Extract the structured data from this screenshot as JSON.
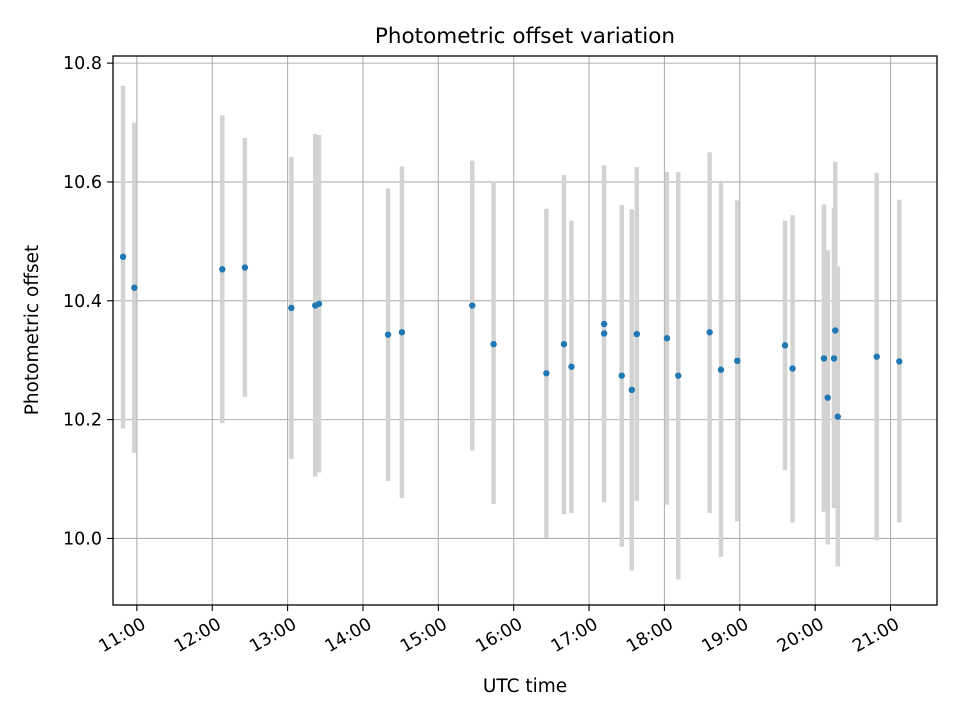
{
  "chart_data": {
    "type": "scatter",
    "title": "Photometric offset variation",
    "xlabel": "UTC time",
    "ylabel": "Photometric offset",
    "x_unit": "UTC time (HH:MM)",
    "xlim": [
      "10:41",
      "21:37"
    ],
    "ylim": [
      9.888,
      10.812
    ],
    "x_ticks": [
      "11:00",
      "12:00",
      "13:00",
      "14:00",
      "15:00",
      "16:00",
      "17:00",
      "18:00",
      "19:00",
      "20:00",
      "21:00"
    ],
    "y_ticks": [
      10.0,
      10.2,
      10.4,
      10.6,
      10.8
    ],
    "y_tick_labels": [
      "10.0",
      "10.2",
      "10.4",
      "10.6",
      "10.8"
    ],
    "grid": true,
    "colors": {
      "point": "#1f77b4",
      "errorbar": "#d3d3d3",
      "grid": "#b0b0b0"
    },
    "series": [
      {
        "marker": "point",
        "errorbar": "vertical",
        "points": [
          {
            "x": "10:49",
            "y": 10.474,
            "ylow": 10.185,
            "yhigh": 10.762
          },
          {
            "x": "10:58",
            "y": 10.422,
            "ylow": 10.144,
            "yhigh": 10.7
          },
          {
            "x": "12:08",
            "y": 10.453,
            "ylow": 10.194,
            "yhigh": 10.712
          },
          {
            "x": "12:26",
            "y": 10.456,
            "ylow": 10.238,
            "yhigh": 10.674
          },
          {
            "x": "13:03",
            "y": 10.388,
            "ylow": 10.134,
            "yhigh": 10.642
          },
          {
            "x": "13:22",
            "y": 10.392,
            "ylow": 10.104,
            "yhigh": 10.681
          },
          {
            "x": "13:25",
            "y": 10.395,
            "ylow": 10.111,
            "yhigh": 10.679
          },
          {
            "x": "14:20",
            "y": 10.343,
            "ylow": 10.097,
            "yhigh": 10.589
          },
          {
            "x": "14:31",
            "y": 10.347,
            "ylow": 10.068,
            "yhigh": 10.626
          },
          {
            "x": "15:27",
            "y": 10.392,
            "ylow": 10.148,
            "yhigh": 10.636
          },
          {
            "x": "15:44",
            "y": 10.327,
            "ylow": 10.058,
            "yhigh": 10.601
          },
          {
            "x": "16:26",
            "y": 10.278,
            "ylow": 10.001,
            "yhigh": 10.555
          },
          {
            "x": "16:40",
            "y": 10.327,
            "ylow": 10.041,
            "yhigh": 10.612
          },
          {
            "x": "16:46",
            "y": 10.289,
            "ylow": 10.043,
            "yhigh": 10.535
          },
          {
            "x": "17:12",
            "y": 10.361,
            "ylow": 10.094,
            "yhigh": 10.628
          },
          {
            "x": "17:12",
            "y": 10.345,
            "ylow": 10.061,
            "yhigh": 10.628
          },
          {
            "x": "17:26",
            "y": 10.274,
            "ylow": 9.986,
            "yhigh": 10.561
          },
          {
            "x": "17:34",
            "y": 10.25,
            "ylow": 9.946,
            "yhigh": 10.554
          },
          {
            "x": "17:38",
            "y": 10.344,
            "ylow": 10.063,
            "yhigh": 10.625
          },
          {
            "x": "18:02",
            "y": 10.337,
            "ylow": 10.057,
            "yhigh": 10.617
          },
          {
            "x": "18:11",
            "y": 10.274,
            "ylow": 9.931,
            "yhigh": 10.617
          },
          {
            "x": "18:36",
            "y": 10.347,
            "ylow": 10.043,
            "yhigh": 10.65
          },
          {
            "x": "18:45",
            "y": 10.284,
            "ylow": 9.969,
            "yhigh": 10.6
          },
          {
            "x": "18:58",
            "y": 10.299,
            "ylow": 10.029,
            "yhigh": 10.569
          },
          {
            "x": "19:36",
            "y": 10.325,
            "ylow": 10.115,
            "yhigh": 10.535
          },
          {
            "x": "19:42",
            "y": 10.286,
            "ylow": 10.027,
            "yhigh": 10.544
          },
          {
            "x": "20:07",
            "y": 10.303,
            "ylow": 10.045,
            "yhigh": 10.562
          },
          {
            "x": "20:10",
            "y": 10.237,
            "ylow": 9.99,
            "yhigh": 10.485
          },
          {
            "x": "20:15",
            "y": 10.303,
            "ylow": 10.051,
            "yhigh": 10.556
          },
          {
            "x": "20:16",
            "y": 10.35,
            "ylow": 10.066,
            "yhigh": 10.634
          },
          {
            "x": "20:18",
            "y": 10.205,
            "ylow": 9.953,
            "yhigh": 10.458
          },
          {
            "x": "20:49",
            "y": 10.306,
            "ylow": 9.997,
            "yhigh": 10.615
          },
          {
            "x": "21:07",
            "y": 10.298,
            "ylow": 10.027,
            "yhigh": 10.57
          }
        ]
      }
    ]
  }
}
